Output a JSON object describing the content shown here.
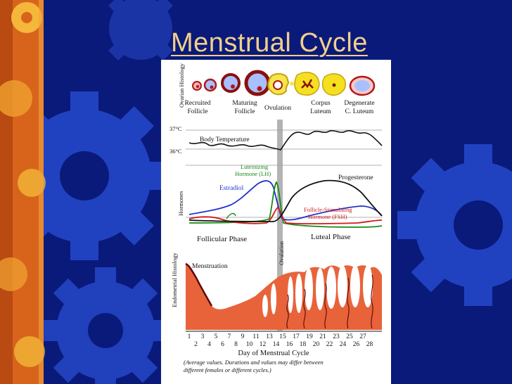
{
  "slide": {
    "title": "Menstrual Cycle"
  },
  "theme": {
    "background": "#0a1a7a",
    "title_color": "#f2cf8a",
    "gear_color": "#2a4fd0",
    "strip_orange": "#e06a1a",
    "strip_yellow": "#f5c23a",
    "tissue_color": "#e8633a",
    "estradiol_color": "#2233cc",
    "lh_color": "#1a8a1a",
    "fsh_color": "#d01a1a",
    "progesterone_color": "#111111"
  },
  "diagram": {
    "ovary_heading": "Ovarian Histology",
    "ovary_stages": [
      {
        "line1": "Recruited",
        "line2": "Follicle"
      },
      {
        "line1": "Maturing",
        "line2": "Follicle"
      },
      {
        "line1": "Ovulation",
        "line2": ""
      },
      {
        "line1": "Corpus",
        "line2": "Luteum"
      },
      {
        "line1": "Degenerate",
        "line2": "C. Luteum"
      }
    ],
    "temperature": {
      "high_label": "37°C",
      "low_label": "36°C",
      "curve_label": "Body Temperature"
    },
    "hormones": {
      "heading": "Hormones",
      "lh_label_line1": "Luteinizing",
      "lh_label_line2": "Hormone (LH)",
      "estradiol_label": "Estradiol",
      "progesterone_label": "Progesterone",
      "fsh_label_line1": "Follicle-Stimulating",
      "fsh_label_line2": "Hormone (FSH)"
    },
    "phases": {
      "follicular": "Follicular Phase",
      "luteal": "Luteal Phase",
      "ovulation": "Ovulation"
    },
    "endometrium": {
      "heading": "Endometrial Histology",
      "menstruation_label": "Menstruation"
    },
    "axis": {
      "odd_days": [
        "1",
        "3",
        "5",
        "7",
        "9",
        "11",
        "13",
        "15",
        "17",
        "19",
        "21",
        "23",
        "25",
        "27"
      ],
      "even_days": [
        "2",
        "4",
        "6",
        "8",
        "10",
        "12",
        "14",
        "16",
        "18",
        "20",
        "22",
        "24",
        "26",
        "28"
      ],
      "title": "Day of Menstrual Cycle"
    },
    "footnote": {
      "line1": "(Average values. Durations and values may differ between",
      "line2": "different females or different cycles.)"
    }
  }
}
